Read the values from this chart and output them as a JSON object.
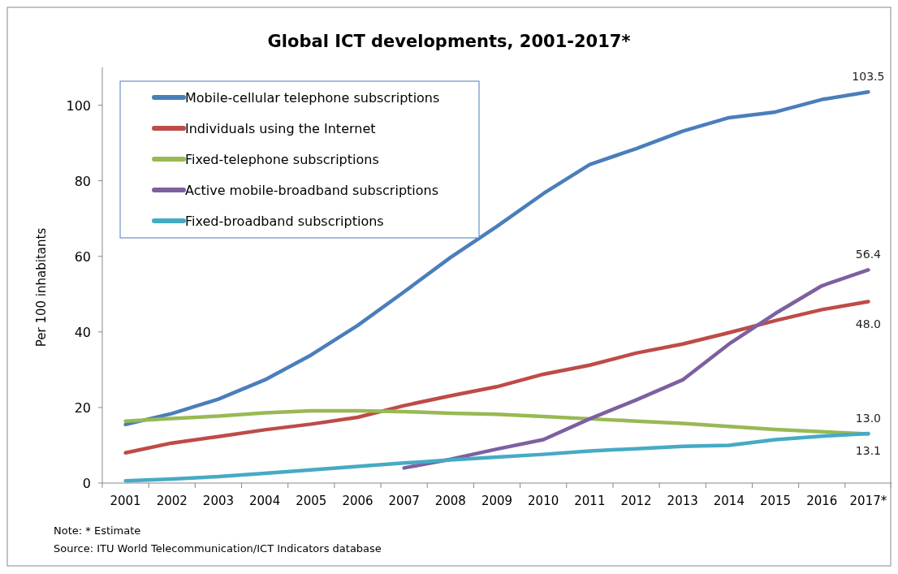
{
  "chart_data": {
    "type": "line",
    "title": "Global ICT developments, 2001-2017*",
    "ylabel": "Per 100 inhabitants",
    "categories": [
      "2001",
      "2002",
      "2003",
      "2004",
      "2005",
      "2006",
      "2007",
      "2008",
      "2009",
      "2010",
      "2011",
      "2012",
      "2013",
      "2014",
      "2015",
      "2016",
      "2017*"
    ],
    "series": [
      {
        "name": "Mobile-cellular telephone subscriptions",
        "color": "#4a7ebb",
        "values": [
          15.5,
          18.4,
          22.2,
          27.3,
          33.9,
          41.7,
          50.6,
          59.7,
          67.9,
          76.6,
          84.3,
          88.5,
          93.1,
          96.7,
          98.2,
          101.5,
          103.5
        ],
        "value_labels": [
          null,
          null,
          null,
          null,
          null,
          null,
          null,
          null,
          null,
          null,
          null,
          null,
          null,
          null,
          null,
          null,
          "103.5"
        ]
      },
      {
        "name": "Individuals using the Internet",
        "color": "#be4b48",
        "values": [
          8.0,
          10.6,
          12.3,
          14.1,
          15.6,
          17.4,
          20.5,
          23.1,
          25.5,
          28.8,
          31.2,
          34.4,
          36.8,
          39.8,
          43.0,
          45.9,
          48.0
        ],
        "value_labels": [
          null,
          null,
          null,
          null,
          null,
          null,
          null,
          null,
          null,
          null,
          null,
          null,
          null,
          null,
          null,
          null,
          "48.0"
        ]
      },
      {
        "name": "Fixed-telephone subscriptions",
        "color": "#98b954",
        "values": [
          16.4,
          17.1,
          17.7,
          18.6,
          19.1,
          19.1,
          18.9,
          18.5,
          18.2,
          17.6,
          17.0,
          16.4,
          15.8,
          15.0,
          14.2,
          13.6,
          13.0
        ],
        "value_labels": [
          null,
          null,
          null,
          null,
          null,
          null,
          null,
          null,
          null,
          null,
          null,
          null,
          null,
          null,
          null,
          null,
          "13.0"
        ]
      },
      {
        "name": "Active mobile-broadband subscriptions",
        "color": "#7d60a0",
        "values": [
          null,
          null,
          null,
          null,
          null,
          null,
          4.0,
          6.3,
          9.0,
          11.5,
          17.0,
          22.0,
          27.3,
          36.8,
          44.9,
          52.2,
          56.4
        ],
        "value_labels": [
          null,
          null,
          null,
          null,
          null,
          null,
          null,
          null,
          null,
          null,
          null,
          null,
          null,
          null,
          null,
          null,
          "56.4"
        ]
      },
      {
        "name": "Fixed-broadband subscriptions",
        "color": "#46aac5",
        "values": [
          0.6,
          1.1,
          1.7,
          2.6,
          3.5,
          4.4,
          5.3,
          6.1,
          6.9,
          7.6,
          8.5,
          9.1,
          9.7,
          10.0,
          11.5,
          12.4,
          13.1
        ],
        "value_labels": [
          null,
          null,
          null,
          null,
          null,
          null,
          null,
          null,
          null,
          null,
          null,
          null,
          null,
          null,
          null,
          null,
          "13.1"
        ]
      }
    ],
    "ylim": [
      0,
      110
    ],
    "yticks": [
      0,
      20,
      40,
      60,
      80,
      100
    ],
    "legend": "top left",
    "annotations": [
      "Note: * Estimate",
      "Source:  ITU World Telecommunication/ICT Indicators database"
    ]
  }
}
